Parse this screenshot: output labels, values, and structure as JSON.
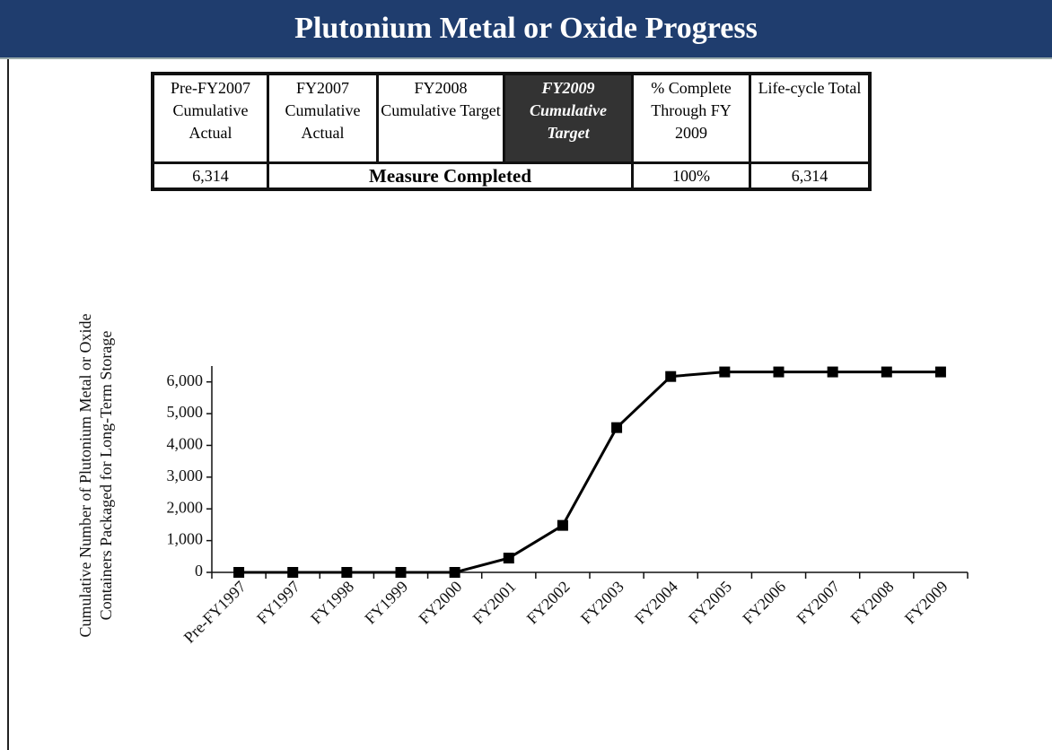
{
  "title": "Plutonium Metal or Oxide Progress",
  "table": {
    "headers": [
      "Pre-FY2007 Cumulative Actual",
      "FY2007 Cumulative Actual",
      "FY2008 Cumulative Target",
      "FY2009 Cumulative Target",
      "% Complete Through FY 2009",
      "Life-cycle Total"
    ],
    "rows": [
      [
        "6,314",
        "Measure Completed",
        "100%",
        "6,314"
      ]
    ]
  },
  "chart_data": {
    "type": "line",
    "ylabel": [
      "Cumulative Number of Plutonium Metal or Oxide",
      "Containers Packaged for Long-Term Storage"
    ],
    "categories": [
      "Pre-FY1997",
      "FY1997",
      "FY1998",
      "FY1999",
      "FY2000",
      "FY2001",
      "FY2002",
      "FY2003",
      "FY2004",
      "FY2005",
      "FY2006",
      "FY2007",
      "FY2008",
      "FY2009"
    ],
    "series": [
      {
        "name": null,
        "color": "#000000",
        "values": [
          0,
          0,
          0,
          0,
          0,
          450,
          1480,
          4560,
          6170,
          6314,
          6314,
          6314,
          6314,
          6314
        ]
      }
    ],
    "ylim": [
      0,
      6500
    ],
    "yticks": [
      0,
      {
        "value": 1000,
        "label": "1,000"
      },
      {
        "value": 2000,
        "label": "2,000"
      },
      {
        "value": 3000,
        "label": "3,000"
      },
      {
        "value": 4000,
        "label": "4,000"
      },
      {
        "value": 5000,
        "label": "5,000"
      },
      {
        "value": 6000,
        "label": "6,000"
      }
    ]
  }
}
